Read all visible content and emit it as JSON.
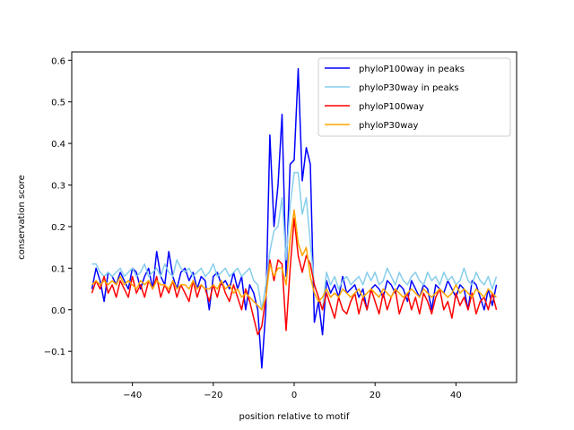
{
  "chart_data": {
    "type": "line",
    "title": "",
    "xlabel": "position relative to motif",
    "ylabel": "conservation score",
    "xlim": [
      -55.0,
      55.0
    ],
    "ylim": [
      -0.175,
      0.62
    ],
    "xticks": [
      -40,
      -20,
      0,
      20,
      40
    ],
    "xtick_labels": [
      "−40",
      "−20",
      "0",
      "20",
      "40"
    ],
    "yticks": [
      -0.1,
      0.0,
      0.1,
      0.2,
      0.3,
      0.4,
      0.5,
      0.6
    ],
    "ytick_labels": [
      "−0.1",
      "0.0",
      "0.1",
      "0.2",
      "0.3",
      "0.4",
      "0.5",
      "0.6"
    ],
    "grid": false,
    "legend_position": "top-right",
    "x": [
      -50,
      -49,
      -48,
      -47,
      -46,
      -45,
      -44,
      -43,
      -42,
      -41,
      -40,
      -39,
      -38,
      -37,
      -36,
      -35,
      -34,
      -33,
      -32,
      -31,
      -30,
      -29,
      -28,
      -27,
      -26,
      -25,
      -24,
      -23,
      -22,
      -21,
      -20,
      -19,
      -18,
      -17,
      -16,
      -15,
      -14,
      -13,
      -12,
      -11,
      -10,
      -9,
      -8,
      -7,
      -6,
      -5,
      -4,
      -3,
      -2,
      -1,
      0,
      1,
      2,
      3,
      4,
      5,
      6,
      7,
      8,
      9,
      10,
      11,
      12,
      13,
      14,
      15,
      16,
      17,
      18,
      19,
      20,
      21,
      22,
      23,
      24,
      25,
      26,
      27,
      28,
      29,
      30,
      31,
      32,
      33,
      34,
      35,
      36,
      37,
      38,
      39,
      40,
      41,
      42,
      43,
      44,
      45,
      46,
      47,
      48,
      49,
      50
    ],
    "series": [
      {
        "name": "phyloP100way in peaks",
        "color": "#0000ff",
        "values": [
          0.05,
          0.1,
          0.07,
          0.02,
          0.09,
          0.08,
          0.06,
          0.09,
          0.07,
          0.05,
          0.1,
          0.09,
          0.05,
          0.08,
          0.1,
          0.05,
          0.14,
          0.08,
          0.06,
          0.14,
          0.08,
          0.05,
          0.09,
          0.1,
          0.07,
          0.09,
          0.05,
          0.08,
          0.07,
          0.0,
          0.08,
          0.09,
          0.06,
          0.07,
          0.05,
          0.09,
          0.05,
          0.08,
          0.0,
          0.06,
          0.04,
          0.0,
          -0.14,
          0.0,
          0.42,
          0.2,
          0.3,
          0.47,
          0.08,
          0.35,
          0.36,
          0.58,
          0.31,
          0.39,
          0.35,
          -0.03,
          0.02,
          -0.06,
          0.07,
          0.04,
          0.06,
          0.03,
          0.08,
          0.04,
          0.05,
          0.06,
          0.03,
          0.05,
          0.0,
          0.05,
          0.06,
          0.05,
          0.03,
          0.07,
          0.06,
          0.04,
          0.06,
          0.05,
          0.02,
          0.07,
          0.05,
          0.03,
          0.06,
          0.05,
          0.0,
          0.06,
          0.05,
          0.04,
          0.07,
          0.05,
          0.03,
          0.06,
          0.05,
          0.0,
          0.07,
          0.06,
          0.03,
          0.0,
          0.05,
          0.01,
          0.06
        ]
      },
      {
        "name": "phyloP30way in peaks",
        "color": "#87ceeb",
        "values": [
          0.11,
          0.11,
          0.09,
          0.08,
          0.09,
          0.08,
          0.09,
          0.1,
          0.08,
          0.09,
          0.1,
          0.08,
          0.09,
          0.11,
          0.08,
          0.09,
          0.1,
          0.08,
          0.11,
          0.09,
          0.08,
          0.12,
          0.1,
          0.09,
          0.1,
          0.08,
          0.09,
          0.1,
          0.08,
          0.09,
          0.11,
          0.08,
          0.09,
          0.1,
          0.08,
          0.09,
          0.1,
          0.08,
          0.09,
          0.1,
          0.07,
          0.06,
          0.0,
          0.06,
          0.14,
          0.19,
          0.2,
          0.27,
          0.12,
          0.25,
          0.33,
          0.33,
          0.23,
          0.27,
          0.16,
          0.06,
          0.03,
          0.0,
          0.09,
          0.06,
          0.08,
          0.05,
          0.07,
          0.08,
          0.06,
          0.07,
          0.08,
          0.06,
          0.09,
          0.07,
          0.09,
          0.06,
          0.07,
          0.1,
          0.08,
          0.06,
          0.09,
          0.07,
          0.06,
          0.08,
          0.09,
          0.07,
          0.06,
          0.09,
          0.07,
          0.08,
          0.06,
          0.09,
          0.07,
          0.08,
          0.06,
          0.07,
          0.1,
          0.07,
          0.06,
          0.09,
          0.07,
          0.06,
          0.08,
          0.05,
          0.08
        ]
      },
      {
        "name": "phyloP100way",
        "color": "#ff0000",
        "values": [
          0.04,
          0.07,
          0.05,
          0.08,
          0.04,
          0.06,
          0.03,
          0.07,
          0.05,
          0.03,
          0.08,
          0.04,
          0.06,
          0.03,
          0.07,
          0.05,
          0.08,
          0.03,
          0.06,
          0.04,
          0.07,
          0.03,
          0.06,
          0.04,
          0.02,
          0.07,
          0.03,
          0.06,
          0.05,
          0.02,
          0.06,
          0.03,
          0.07,
          0.04,
          0.02,
          0.06,
          0.03,
          0.0,
          0.05,
          0.02,
          -0.02,
          -0.06,
          -0.04,
          0.03,
          0.12,
          0.07,
          0.12,
          0.11,
          -0.05,
          0.1,
          0.22,
          0.13,
          0.09,
          0.13,
          0.11,
          0.06,
          0.03,
          0.0,
          0.04,
          0.01,
          -0.02,
          0.03,
          0.0,
          -0.01,
          0.02,
          0.04,
          -0.01,
          0.03,
          0.0,
          0.05,
          0.02,
          -0.01,
          0.04,
          0.0,
          0.03,
          0.05,
          -0.01,
          0.02,
          0.04,
          0.0,
          0.03,
          -0.01,
          0.04,
          0.02,
          -0.01,
          0.03,
          0.05,
          0.0,
          0.02,
          -0.02,
          0.04,
          0.01,
          0.03,
          0.0,
          0.04,
          -0.01,
          0.02,
          0.03,
          0.0,
          0.04,
          0.0
        ]
      },
      {
        "name": "phyloP30way",
        "color": "#ffa500",
        "values": [
          0.06,
          0.07,
          0.06,
          0.07,
          0.06,
          0.07,
          0.06,
          0.08,
          0.06,
          0.07,
          0.06,
          0.05,
          0.07,
          0.06,
          0.07,
          0.05,
          0.07,
          0.06,
          0.06,
          0.05,
          0.07,
          0.05,
          0.06,
          0.06,
          0.05,
          0.07,
          0.05,
          0.06,
          0.05,
          0.05,
          0.06,
          0.05,
          0.07,
          0.05,
          0.06,
          0.04,
          0.05,
          0.03,
          0.04,
          0.03,
          0.02,
          0.01,
          0.0,
          0.03,
          0.11,
          0.08,
          0.1,
          0.1,
          0.06,
          0.17,
          0.24,
          0.16,
          0.13,
          0.15,
          0.08,
          0.04,
          0.02,
          0.03,
          0.05,
          0.03,
          0.04,
          0.03,
          0.05,
          0.04,
          0.03,
          0.04,
          0.05,
          0.03,
          0.04,
          0.05,
          0.04,
          0.03,
          0.05,
          0.04,
          0.03,
          0.05,
          0.04,
          0.03,
          0.04,
          0.05,
          0.04,
          0.03,
          0.05,
          0.04,
          0.03,
          0.04,
          0.05,
          0.04,
          0.03,
          0.04,
          0.06,
          0.04,
          0.05,
          0.04,
          0.03,
          0.05,
          0.04,
          0.03,
          0.05,
          0.04,
          0.03
        ]
      }
    ]
  }
}
